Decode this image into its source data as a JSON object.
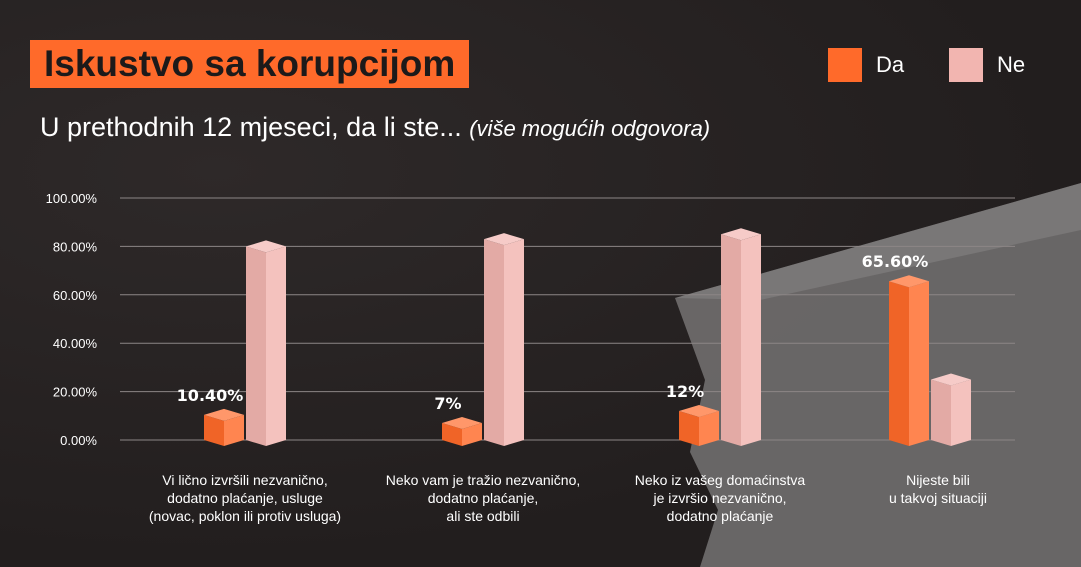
{
  "title": "Iskustvo sa korupcijom",
  "subtitle": "U prethodnih 12 mjeseci, da li ste...",
  "subtitle_note": "(više mogućih odgovora)",
  "colors": {
    "background": "#262222",
    "da": "#ff6a2a",
    "ne": "#f2b5b0",
    "accent": "#ff6a2a"
  },
  "legend": [
    {
      "label": "Da",
      "color": "#ff6a2a"
    },
    {
      "label": "Ne",
      "color": "#f2b5b0"
    }
  ],
  "chart_data": {
    "type": "bar",
    "categories": [
      "Vi lično izvršili nezvanično,\ndodatno plaćanje, usluge\n(novac, poklon ili protiv usluga)",
      "Neko vam je tražio nezvanično,\ndodatno plaćanje,\nali ste odbili",
      "Neko iz vašeg domaćinstva\nje izvršio nezvanično,\ndodatno plaćanje",
      "Nijeste bili\nu takvoj situaciji"
    ],
    "series": [
      {
        "name": "Da",
        "values": [
          10.4,
          7,
          12,
          65.6
        ],
        "data_labels": [
          "10.40%",
          "7%",
          "12%",
          "65.60%"
        ]
      },
      {
        "name": "Ne",
        "values": [
          80,
          83,
          85,
          25
        ]
      }
    ],
    "y_ticks": [
      "0.00%",
      "20.00%",
      "40.00%",
      "60.00%",
      "80.00%",
      "100.00%"
    ],
    "ylim": [
      0,
      100
    ],
    "grid": true,
    "legend_position": "top-right"
  }
}
